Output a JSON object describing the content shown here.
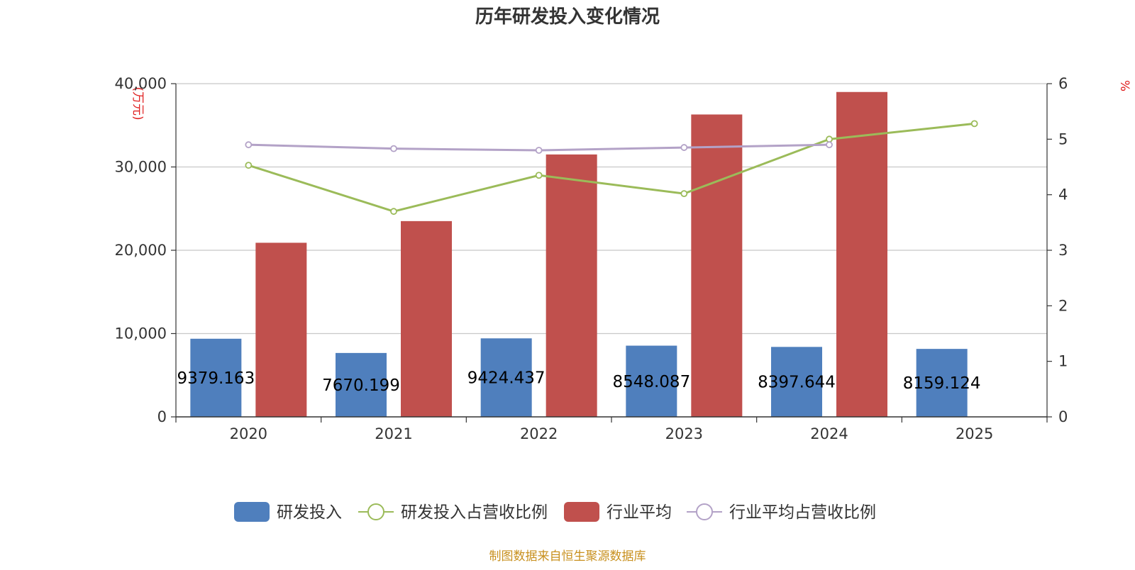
{
  "chart_data": {
    "type": "bar",
    "title": "历年研发投入变化情况",
    "categories": [
      "2020",
      "2021",
      "2022",
      "2023",
      "2024",
      "2025"
    ],
    "y_left": {
      "unit_label": "(万元)",
      "min": 0,
      "max": 40000,
      "ticks": [
        0,
        10000,
        20000,
        30000,
        40000
      ],
      "tick_labels": [
        "0",
        "10,000",
        "20,000",
        "30,000",
        "40,000"
      ]
    },
    "y_right": {
      "unit_label": "%",
      "min": 0,
      "max": 6,
      "ticks": [
        0,
        1,
        2,
        3,
        4,
        5,
        6
      ],
      "tick_labels": [
        "0",
        "1",
        "2",
        "3",
        "4",
        "5",
        "6"
      ]
    },
    "grid": true,
    "legend_position": "bottom",
    "series": [
      {
        "name": "研发投入",
        "type": "bar",
        "axis": "left",
        "color": "#4f7fbd",
        "values": [
          9379.163,
          7670.199,
          9424.437,
          8548.087,
          8397.644,
          8159.124
        ],
        "labels": [
          "9379.163",
          "7670.199",
          "9424.437",
          "8548.087",
          "8397.644",
          "8159.124"
        ]
      },
      {
        "name": "研发投入占营收比例",
        "type": "line",
        "axis": "right",
        "color": "#9bbb59",
        "values": [
          4.53,
          3.7,
          4.35,
          4.02,
          5.0,
          5.28
        ]
      },
      {
        "name": "行业平均",
        "type": "bar",
        "axis": "left",
        "color": "#c0504d",
        "values": [
          20900,
          23500,
          31500,
          36300,
          39000,
          null
        ]
      },
      {
        "name": "行业平均占营收比例",
        "type": "line",
        "axis": "right",
        "color": "#b3a2c7",
        "values": [
          4.9,
          4.83,
          4.8,
          4.85,
          4.9,
          null
        ]
      }
    ],
    "source": "制图数据来自恒生聚源数据库"
  }
}
